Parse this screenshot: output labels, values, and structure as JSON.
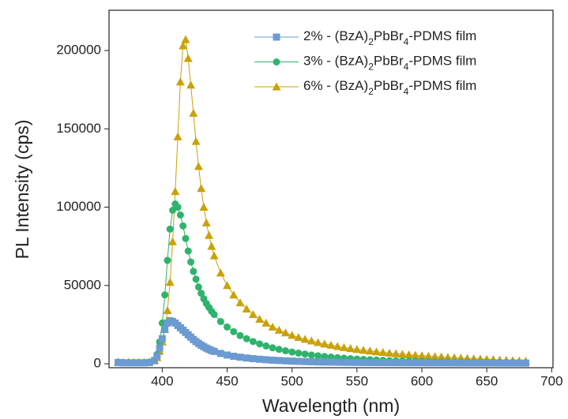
{
  "chart_data": {
    "type": "line",
    "x_label": "Wavelength (nm)",
    "y_label": "PL Intensity (cps)",
    "xlim": [
      359,
      701
    ],
    "ylim": [
      -2500,
      225700
    ],
    "xticks": [
      400,
      450,
      500,
      550,
      600,
      650,
      700
    ],
    "yticks": [
      0,
      50000,
      100000,
      150000,
      200000
    ],
    "legend": "upper right",
    "x": [
      366,
      370,
      374,
      378,
      382,
      386,
      390,
      394,
      396,
      398,
      400,
      402,
      404,
      406,
      408,
      410,
      412,
      414,
      416,
      418,
      420,
      422,
      424,
      426,
      428,
      430,
      432,
      434,
      436,
      438,
      440,
      445,
      450,
      455,
      460,
      465,
      470,
      475,
      480,
      485,
      490,
      495,
      500,
      505,
      510,
      515,
      520,
      525,
      530,
      535,
      540,
      545,
      550,
      555,
      560,
      565,
      570,
      575,
      580,
      585,
      590,
      595,
      600,
      605,
      610,
      615,
      620,
      625,
      630,
      635,
      640,
      645,
      650,
      655,
      660,
      665,
      670,
      675,
      680
    ],
    "series": [
      {
        "name": "2% - (BzA)2PbBr4-PDMS film",
        "color": "#6b9bd2",
        "marker": "square",
        "values": [
          800,
          600,
          600,
          600,
          600,
          600,
          800,
          2000,
          5000,
          10000,
          16000,
          22000,
          26000,
          27500,
          27000,
          26000,
          24500,
          23000,
          21500,
          20000,
          18500,
          17000,
          15500,
          14200,
          13000,
          11900,
          10900,
          10000,
          9200,
          8500,
          7900,
          6600,
          5600,
          4800,
          4200,
          3700,
          3300,
          2900,
          2600,
          2300,
          2100,
          1900,
          1700,
          1550,
          1400,
          1300,
          1200,
          1100,
          1050,
          1000,
          950,
          900,
          850,
          800,
          780,
          760,
          740,
          720,
          700,
          680,
          660,
          640,
          620,
          600,
          590,
          580,
          570,
          560,
          550,
          540,
          530,
          520,
          510,
          500,
          490,
          480,
          470,
          460,
          450
        ]
      },
      {
        "name": "3% - (BzA)2PbBr4-PDMS film",
        "color": "#2fb36c",
        "marker": "circle",
        "values": [
          1000,
          800,
          800,
          800,
          800,
          800,
          1000,
          2500,
          6000,
          14000,
          26000,
          44000,
          66000,
          86000,
          98000,
          102000,
          100000,
          95000,
          88000,
          80000,
          72000,
          65000,
          59000,
          54000,
          49000,
          45000,
          41500,
          38500,
          36000,
          33500,
          31500,
          27000,
          23500,
          20500,
          18000,
          16000,
          14200,
          12700,
          11400,
          10200,
          9200,
          8300,
          7500,
          6800,
          6200,
          5600,
          5100,
          4700,
          4300,
          3900,
          3600,
          3300,
          3000,
          2800,
          2600,
          2400,
          2200,
          2000,
          1900,
          1800,
          1700,
          1600,
          1500,
          1400,
          1300,
          1250,
          1200,
          1150,
          1100,
          1050,
          1000,
          950,
          900,
          850,
          800,
          750,
          700,
          650,
          600
        ]
      },
      {
        "name": "6% - (BzA)2PbBr4-PDMS film",
        "color": "#c9a10a",
        "marker": "triangle",
        "values": [
          1200,
          1000,
          1000,
          1000,
          1000,
          1000,
          1200,
          2000,
          4000,
          8000,
          14000,
          22000,
          34000,
          52000,
          78000,
          110000,
          145000,
          180000,
          203000,
          207000,
          195000,
          178000,
          160000,
          142000,
          126000,
          112000,
          100000,
          90000,
          82000,
          75000,
          69000,
          58000,
          50000,
          44000,
          39000,
          35000,
          31500,
          28500,
          26000,
          23500,
          21500,
          19800,
          18200,
          16900,
          15700,
          14600,
          13600,
          12700,
          11900,
          11100,
          10400,
          9800,
          9200,
          8700,
          8200,
          7700,
          7300,
          6900,
          6500,
          6100,
          5800,
          5500,
          5200,
          4900,
          4600,
          4400,
          4100,
          3900,
          3700,
          3500,
          3300,
          3100,
          2900,
          2700,
          2500,
          2300,
          2100,
          1900,
          1700
        ]
      }
    ]
  }
}
